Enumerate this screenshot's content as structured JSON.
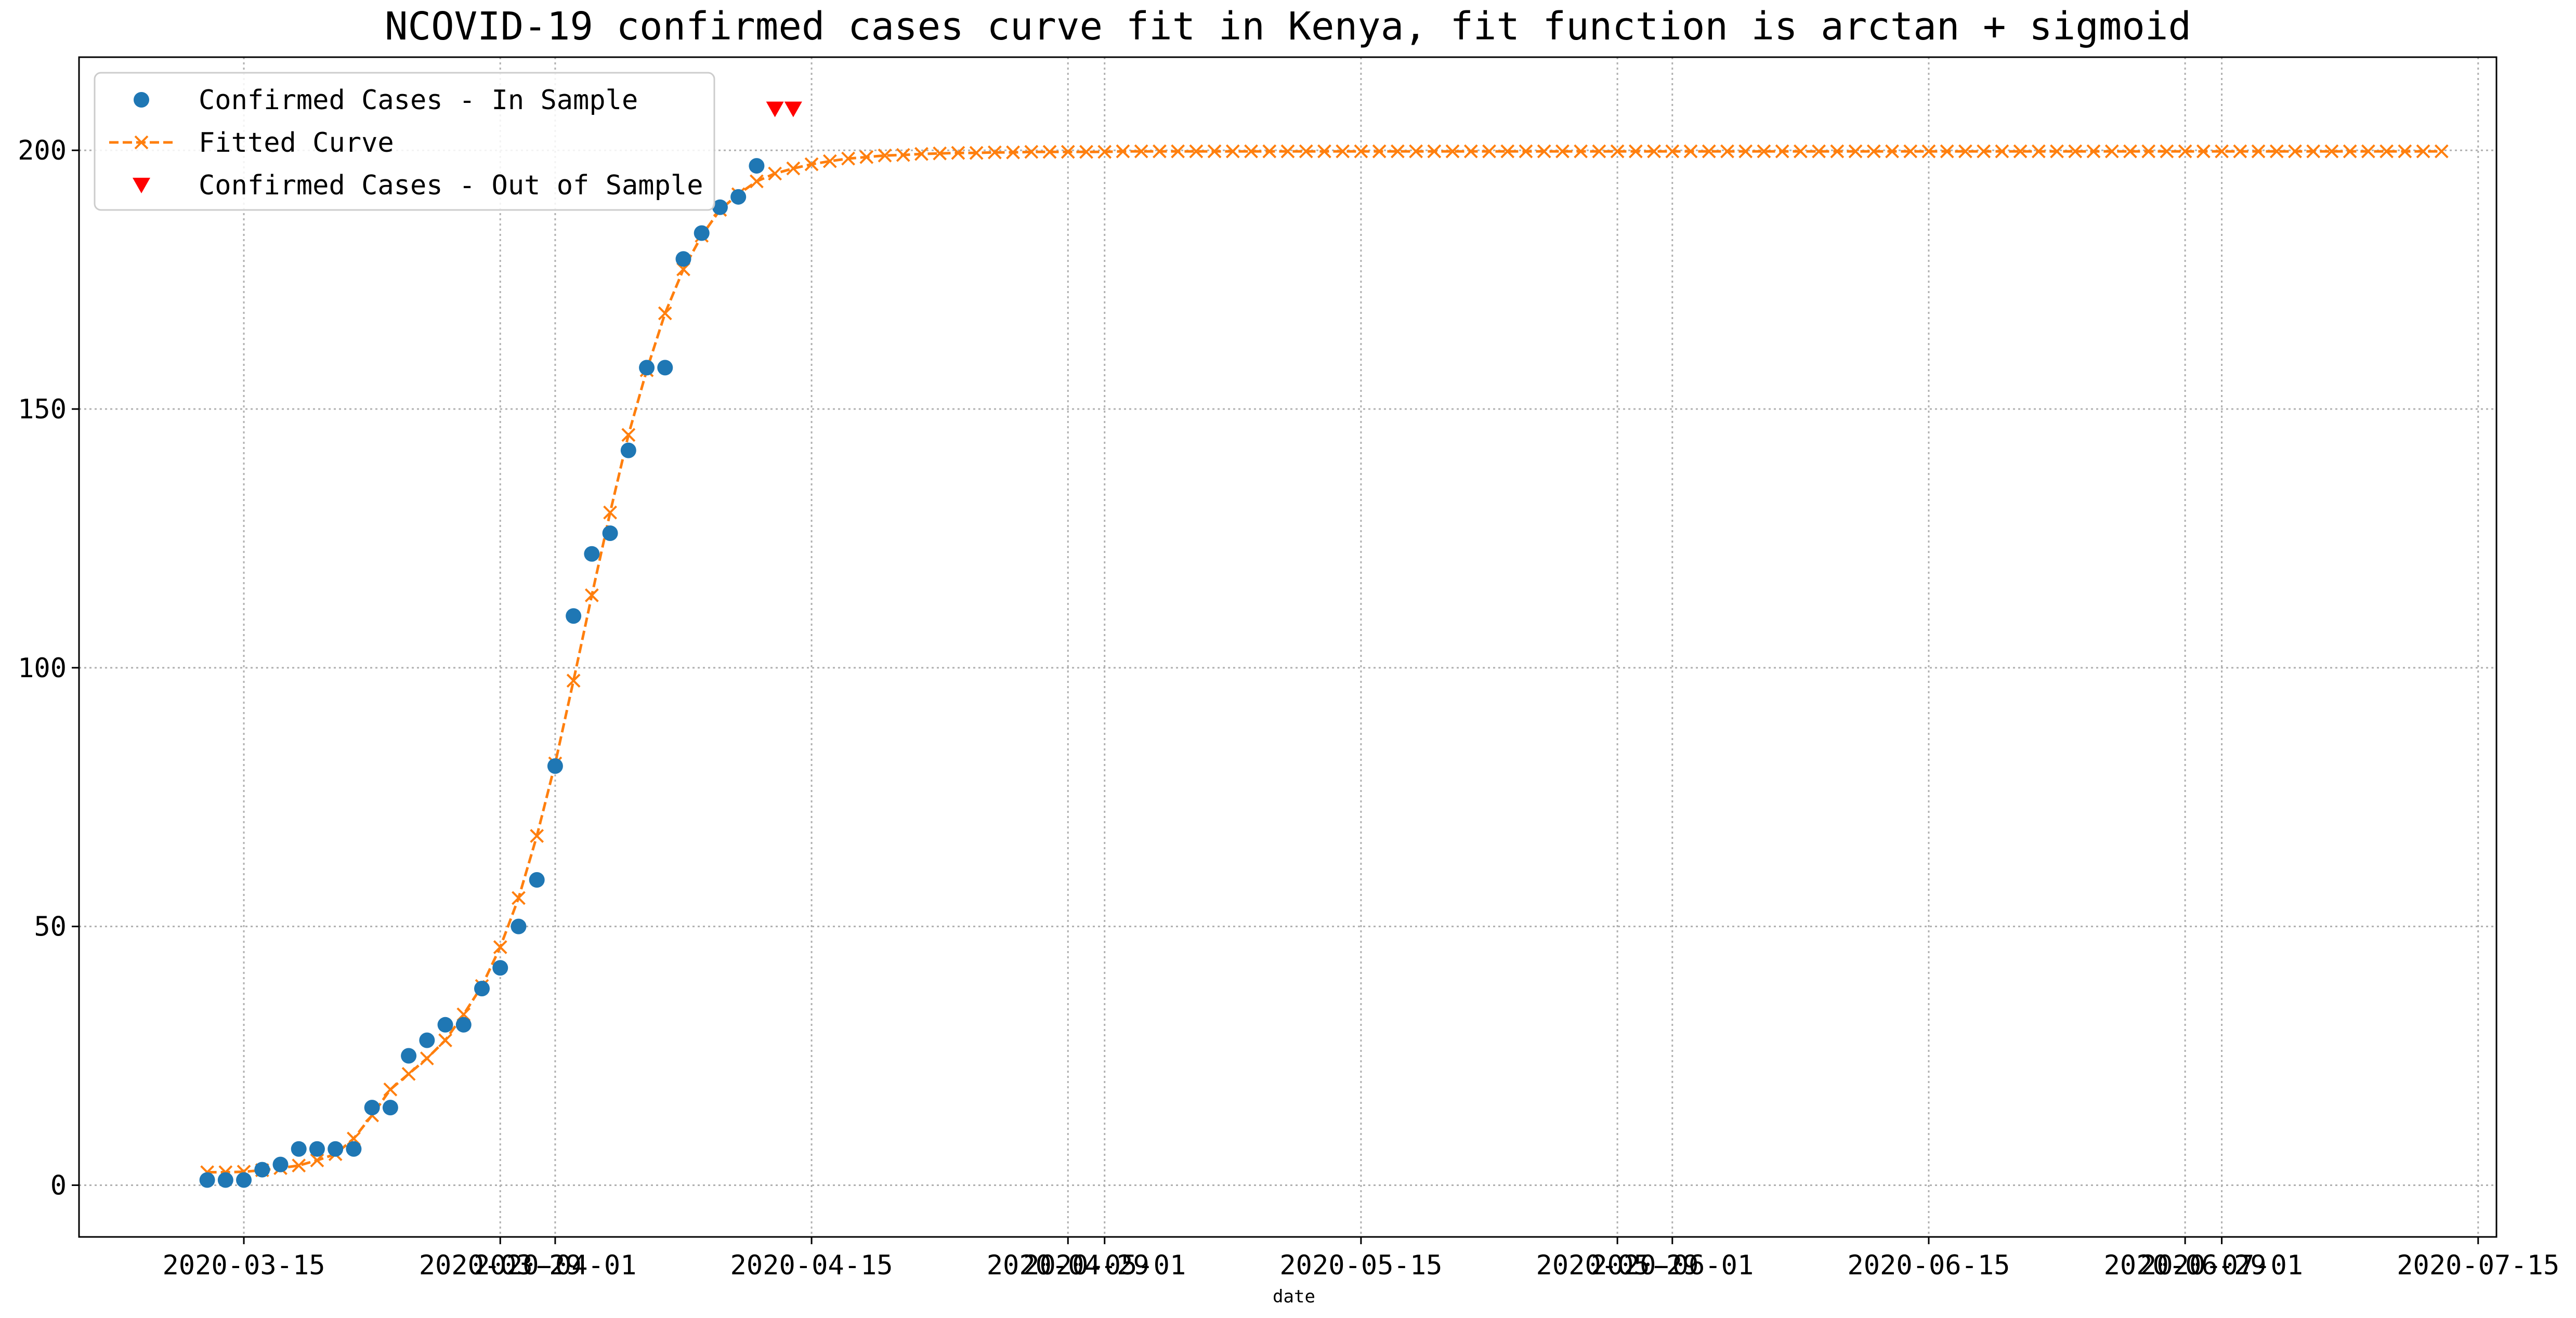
{
  "chart_data": {
    "type": "line",
    "title": "NCOVID-19 confirmed cases curve fit in Kenya, fit function is arctan + sigmoid",
    "xlabel": "date",
    "ylabel": "",
    "x_axis": "date",
    "xlim": [
      "2020-03-06",
      "2020-07-16"
    ],
    "ylim": [
      -10,
      218
    ],
    "grid": true,
    "legend_position": "top-left",
    "x_ticks": [
      {
        "date": "2020-03-15",
        "label": "2020-03-15"
      },
      {
        "date": "2020-03-29",
        "label": "2020-03-29"
      },
      {
        "date": "2020-04-01",
        "label": "2020-04-01"
      },
      {
        "date": "2020-04-15",
        "label": "2020-04-15"
      },
      {
        "date": "2020-04-29",
        "label": "2020-04-29"
      },
      {
        "date": "2020-05-01",
        "label": "2020-05-01"
      },
      {
        "date": "2020-05-15",
        "label": "2020-05-15"
      },
      {
        "date": "2020-05-29",
        "label": "2020-05-29"
      },
      {
        "date": "2020-06-01",
        "label": "2020-06-01"
      },
      {
        "date": "2020-06-15",
        "label": "2020-06-15"
      },
      {
        "date": "2020-06-29",
        "label": "2020-06-29"
      },
      {
        "date": "2020-07-01",
        "label": "2020-07-01"
      },
      {
        "date": "2020-07-15",
        "label": "2020-07-15"
      }
    ],
    "y_ticks": [
      0,
      50,
      100,
      150,
      200
    ],
    "series": [
      {
        "name": "Confirmed Cases - In Sample",
        "style": "scatter",
        "marker": "circle",
        "color": "#1f77b4",
        "points": [
          [
            "2020-03-13",
            1
          ],
          [
            "2020-03-14",
            1
          ],
          [
            "2020-03-15",
            1
          ],
          [
            "2020-03-16",
            3
          ],
          [
            "2020-03-17",
            4
          ],
          [
            "2020-03-18",
            7
          ],
          [
            "2020-03-19",
            7
          ],
          [
            "2020-03-20",
            7
          ],
          [
            "2020-03-21",
            7
          ],
          [
            "2020-03-22",
            15
          ],
          [
            "2020-03-23",
            15
          ],
          [
            "2020-03-24",
            25
          ],
          [
            "2020-03-25",
            28
          ],
          [
            "2020-03-26",
            31
          ],
          [
            "2020-03-27",
            31
          ],
          [
            "2020-03-28",
            38
          ],
          [
            "2020-03-29",
            42
          ],
          [
            "2020-03-30",
            50
          ],
          [
            "2020-03-31",
            59
          ],
          [
            "2020-04-01",
            81
          ],
          [
            "2020-04-02",
            110
          ],
          [
            "2020-04-03",
            122
          ],
          [
            "2020-04-04",
            126
          ],
          [
            "2020-04-05",
            142
          ],
          [
            "2020-04-06",
            158
          ],
          [
            "2020-04-07",
            158
          ],
          [
            "2020-04-08",
            179
          ],
          [
            "2020-04-09",
            184
          ],
          [
            "2020-04-10",
            189
          ],
          [
            "2020-04-11",
            191
          ],
          [
            "2020-04-12",
            197
          ]
        ]
      },
      {
        "name": "Fitted Curve",
        "style": "line",
        "line_dash": "dashed",
        "marker": "x",
        "color": "#ff7f0e",
        "start_date": "2020-03-13",
        "step_days": 1,
        "values": [
          2.5,
          2.5,
          2.6,
          2.9,
          3.3,
          3.8,
          4.8,
          6.0,
          9.0,
          13.5,
          18.5,
          21.5,
          24.5,
          28.0,
          33.0,
          38.5,
          46.0,
          55.5,
          67.5,
          81.5,
          97.5,
          114.0,
          130.0,
          145.0,
          157.5,
          168.5,
          177.0,
          183.5,
          188.5,
          191.5,
          194.0,
          195.5,
          196.5,
          197.3,
          197.9,
          198.4,
          198.7,
          199.0,
          199.1,
          199.3,
          199.4,
          199.5,
          199.5,
          199.6,
          199.6,
          199.7,
          199.7,
          199.7,
          199.7,
          199.7,
          199.8,
          199.8,
          199.8,
          199.8,
          199.8,
          199.8,
          199.8,
          199.8,
          199.8,
          199.8,
          199.8,
          199.8,
          199.8,
          199.8,
          199.8,
          199.8,
          199.8,
          199.8,
          199.8,
          199.8,
          199.8,
          199.8,
          199.8,
          199.8,
          199.8,
          199.8,
          199.8,
          199.8,
          199.8,
          199.8,
          199.8,
          199.8,
          199.8,
          199.8,
          199.8,
          199.8,
          199.8,
          199.8,
          199.8,
          199.8,
          199.8,
          199.8,
          199.8,
          199.8,
          199.8,
          199.8,
          199.8,
          199.8,
          199.8,
          199.8,
          199.8,
          199.8,
          199.8,
          199.8,
          199.8,
          199.8,
          199.8,
          199.8,
          199.8,
          199.8,
          199.8,
          199.8,
          199.8,
          199.8,
          199.8,
          199.8,
          199.8,
          199.8,
          199.8,
          199.8,
          199.8,
          199.8,
          199.8
        ]
      },
      {
        "name": "Confirmed Cases - Out of Sample",
        "style": "scatter",
        "marker": "triangle-down",
        "color": "#ff0000",
        "points": [
          [
            "2020-04-13",
            208
          ],
          [
            "2020-04-14",
            208
          ]
        ]
      }
    ]
  }
}
